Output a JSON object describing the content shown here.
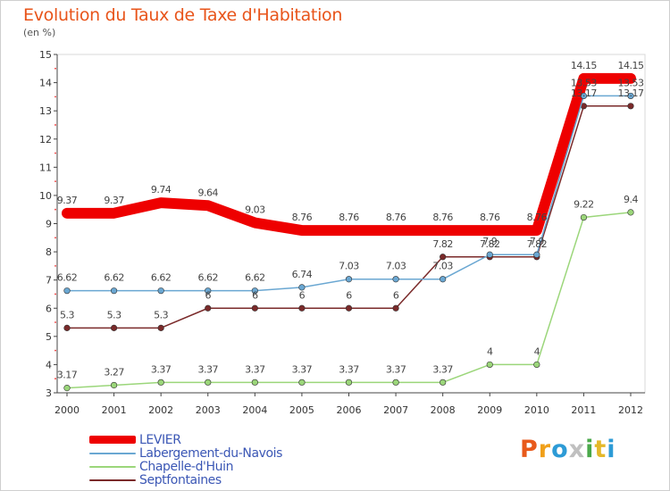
{
  "header": {
    "title": "Evolution du Taux de Taxe d'Habitation",
    "subtitle": "(en %)"
  },
  "brand": {
    "letters": [
      "P",
      "r",
      "o",
      "x",
      "i",
      "t",
      "i"
    ],
    "colors": [
      "#e85a1b",
      "#f0a01a",
      "#2d9bd6",
      "#c0c0c0",
      "#4aa84a",
      "#e4b82a",
      "#2d9bd6"
    ]
  },
  "chart_data": {
    "type": "line",
    "title": "Evolution du Taux de Taxe d'Habitation",
    "ylabel": "(en %)",
    "xlabel": "",
    "x": [
      "2000",
      "2001",
      "2002",
      "2003",
      "2004",
      "2005",
      "2006",
      "2007",
      "2008",
      "2009",
      "2010",
      "2011",
      "2012"
    ],
    "ylim": [
      3,
      15
    ],
    "yticks": [
      "3",
      "4",
      "5",
      "6",
      "7",
      "8",
      "9",
      "10",
      "11",
      "12",
      "13",
      "14",
      "15"
    ],
    "grid": false,
    "legend_position": "bottom-left",
    "series": [
      {
        "name": "LEVIER",
        "color": "#ee0000",
        "values": [
          9.37,
          9.37,
          9.74,
          9.64,
          9.03,
          8.76,
          8.76,
          8.76,
          8.76,
          8.76,
          8.76,
          14.15,
          14.15
        ],
        "labels": [
          "9.37",
          "9.37",
          "9.74",
          "9.64",
          "9.03",
          "8.76",
          "8.76",
          "8.76",
          "8.76",
          "8.76",
          "8.76",
          "14.15",
          "14.15"
        ]
      },
      {
        "name": "Labergement-du-Navois",
        "color": "#6aa7d2",
        "values": [
          6.62,
          6.62,
          6.62,
          6.62,
          6.62,
          6.74,
          7.03,
          7.03,
          7.03,
          7.9,
          7.9,
          13.53,
          13.53
        ],
        "labels": [
          "6.62",
          "6.62",
          "6.62",
          "6.62",
          "6.62",
          "6.74",
          "7.03",
          "7.03",
          "7.03",
          "7.9",
          "7.9",
          "13.53",
          "13.53"
        ]
      },
      {
        "name": "Chapelle-d'Huin",
        "color": "#9bd67a",
        "values": [
          3.17,
          3.27,
          3.37,
          3.37,
          3.37,
          3.37,
          3.37,
          3.37,
          3.37,
          4,
          4,
          9.22,
          9.4
        ],
        "labels": [
          "3.17",
          "3.27",
          "3.37",
          "3.37",
          "3.37",
          "3.37",
          "3.37",
          "3.37",
          "3.37",
          "4",
          "4",
          "9.22",
          "9.4"
        ]
      },
      {
        "name": "Septfontaines",
        "color": "#7a2a2a",
        "values": [
          5.3,
          5.3,
          5.3,
          6,
          6,
          6,
          6,
          6,
          7.82,
          7.82,
          7.82,
          13.17,
          13.17
        ],
        "labels": [
          "5.3",
          "5.3",
          "5.3",
          "6",
          "6",
          "6",
          "6",
          "6",
          "7.82",
          "7.82",
          "7.82",
          "13.17",
          "13.17"
        ]
      }
    ]
  }
}
